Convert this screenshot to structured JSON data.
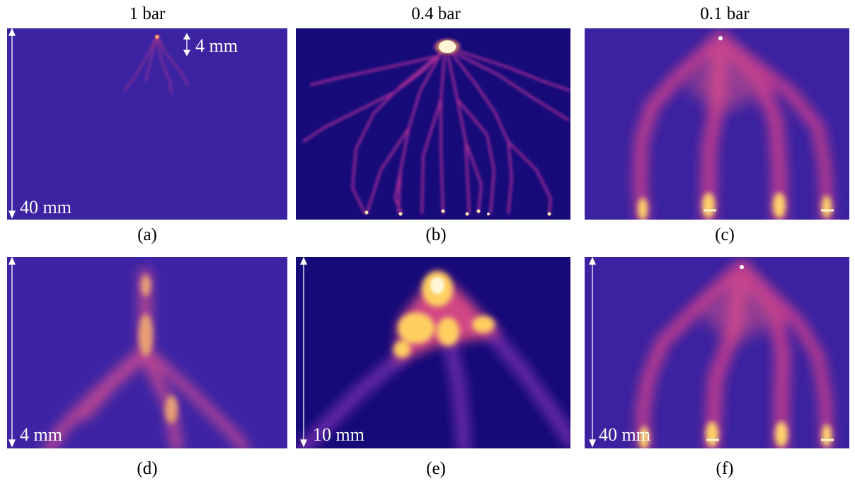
{
  "columns": [
    "1 bar",
    "0.4 bar",
    "0.1 bar"
  ],
  "captions": [
    "(a)",
    "(b)",
    "(c)",
    "(d)",
    "(e)",
    "(f)"
  ],
  "scalebars": {
    "a_inset": "4 mm",
    "a": "40 mm",
    "d": "4 mm",
    "e": "10 mm",
    "f": "40 mm"
  },
  "colors": {
    "background": "#3b22a0",
    "dark_background": "#160a78",
    "streamer": "#c2318f",
    "bright": "#ffe07a"
  }
}
